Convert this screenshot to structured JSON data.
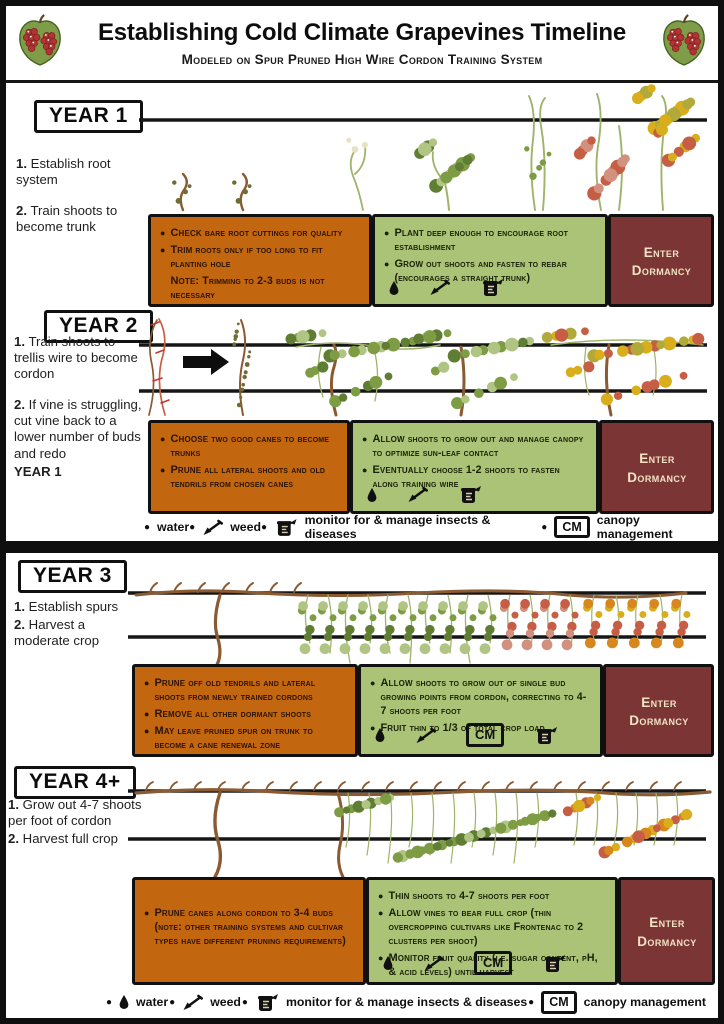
{
  "header": {
    "title": "Establishing Cold Climate Grapevines Timeline",
    "subtitle": "Modeled on Spur Pruned High Wire Cordon Training System"
  },
  "icons": {
    "bullet": "●",
    "logo": "grape-leaf-logo",
    "water": "droplet-icon",
    "weed": "hoe-icon",
    "monitor": "jar-icon",
    "canopy": "cm-badge"
  },
  "colors": {
    "orange": "#c2660f",
    "green": "#abc377",
    "maroon": "#7b3534",
    "cream": "#f1e3c6",
    "orange-text": "#2d1301",
    "green-text": "#182005",
    "vine-brown": "#8a5a33",
    "vine-stem": "#9fb36a",
    "vine-green": "#7d9c44",
    "vine-green-light": "#b0c584",
    "leaf-dark": "#5f7d33",
    "bud-olive": "#6f6c35",
    "bud-cream": "#e9e1c4",
    "autumn-yellow": "#d9ae1c",
    "autumn-olive": "#b1a93a",
    "autumn-orange": "#d8871e",
    "autumn-red": "#c65e45",
    "autumn-pink": "#d2907e"
  },
  "year1": {
    "label": "YEAR 1",
    "tasks": [
      {
        "num": "1.",
        "text": "Establish root system"
      },
      {
        "num": "2.",
        "text": "Train shoots to become trunk"
      }
    ],
    "orange_box": {
      "items": [
        {
          "lead": "Check",
          "rest": "bare root cuttings for quality"
        },
        {
          "lead": "Trim",
          "rest": "roots only if too long to fit planting hole"
        },
        {
          "lead": "Note:",
          "rest": "Trimming to 2-3 buds is not necessary"
        }
      ]
    },
    "green_box": {
      "items": [
        {
          "lead": "Plant",
          "rest": "deep enough to encourage root establishment"
        },
        {
          "lead": "Grow",
          "rest": "out shoots and fasten to rebar (encourages a straight trunk)"
        }
      ]
    },
    "dormancy": "Enter Dormancy"
  },
  "year2": {
    "label": "YEAR 2",
    "tasks": [
      {
        "num": "1.",
        "text": "Train shoots to trellis wire to become cordon"
      },
      {
        "num": "2.",
        "text": "If vine is struggling, cut vine back to a lower number of buds and redo",
        "suffix": "YEAR 1"
      }
    ],
    "orange_box": {
      "items": [
        {
          "lead": "Choose",
          "rest": "two good canes to become trunks"
        },
        {
          "lead": "Prune",
          "rest": "all lateral shoots and old tendrils from chosen canes"
        }
      ]
    },
    "green_box": {
      "items": [
        {
          "lead": "Allow",
          "rest": "shoots to grow out and manage canopy to optimize sun-leaf contact"
        },
        {
          "lead": "Eventually",
          "rest": "choose 1-2 shoots to fasten along training wire"
        }
      ]
    },
    "dormancy": "Enter Dormancy"
  },
  "year3": {
    "label": "YEAR 3",
    "tasks": [
      {
        "num": "1.",
        "text": "Establish spurs"
      },
      {
        "num": "2.",
        "text": "Harvest a moderate crop"
      }
    ],
    "orange_box": {
      "items": [
        {
          "lead": "Prune",
          "rest": "off old tendrils and lateral shoots from newly trained cordons"
        },
        {
          "lead": "Remove",
          "rest": "all other dormant shoots"
        },
        {
          "lead": "May",
          "rest": "leave pruned spur on trunk to become a cane renewal zone"
        }
      ]
    },
    "green_box": {
      "items": [
        {
          "lead": "Allow",
          "rest": "shoots to grow out of single bud growing points from cordon, correcting to 4-7 shoots per foot"
        },
        {
          "lead": "Fruit",
          "rest": "thin to 1/3 of total crop load"
        }
      ]
    },
    "dormancy": "Enter Dormancy"
  },
  "year4": {
    "label": "YEAR 4+",
    "tasks": [
      {
        "num": "1.",
        "text": "Grow out 4-7 shoots per foot of cordon"
      },
      {
        "num": "2.",
        "text": "Harvest full crop"
      }
    ],
    "orange_box": {
      "items": [
        {
          "lead": "Prune",
          "rest": "canes along cordon to 3-4 buds (note: other training systems and cultivar types have different pruning requirements)"
        }
      ]
    },
    "green_box": {
      "items": [
        {
          "lead": "Thin",
          "rest": "shoots to 4-7 shoots per foot"
        },
        {
          "lead": "Allow",
          "rest": "vines to bear full crop (thin overcropping cultivars like Frontenac to 2 clusters per shoot)"
        },
        {
          "lead": "Monitor",
          "rest": "fruit quality (i.e. sugar content, pH, & acid levels) until harvest"
        }
      ]
    },
    "dormancy": "Enter Dormancy"
  },
  "legend": {
    "water": "water",
    "weed": "weed",
    "monitor": "monitor for & manage insects & diseases",
    "cm_abbr": "CM",
    "canopy": "canopy management"
  }
}
